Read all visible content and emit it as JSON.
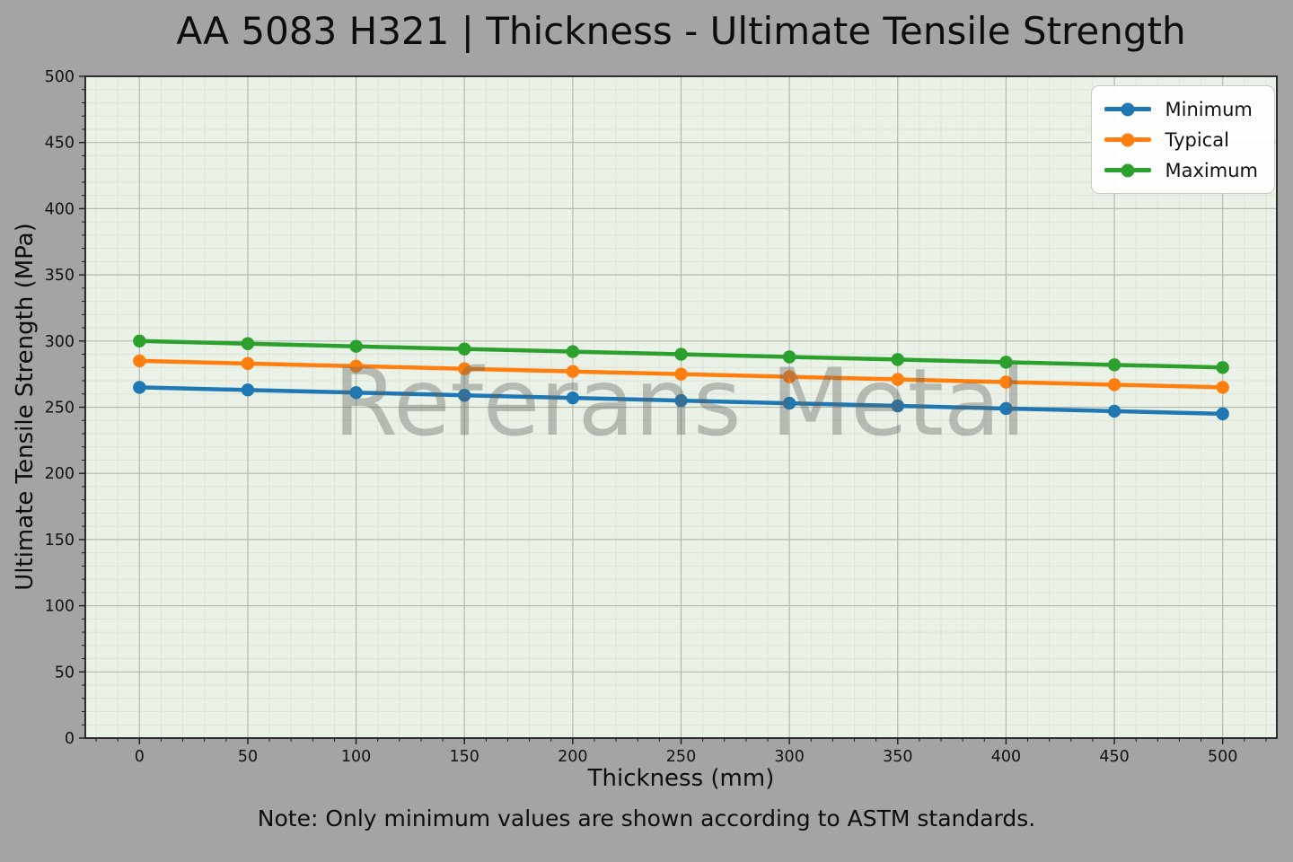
{
  "figure": {
    "background_color": "#a4a4a4",
    "watermark": "Referans Metal",
    "note": "Note: Only minimum values are shown according to ASTM standards."
  },
  "chart_data": {
    "type": "line",
    "title": "AA 5083 H321 | Thickness - Ultimate Tensile Strength",
    "xlabel": "Thickness (mm)",
    "ylabel": "Ultimate Tensile Strength (MPa)",
    "x": [
      0,
      50,
      100,
      150,
      200,
      250,
      300,
      350,
      400,
      450,
      500
    ],
    "series": [
      {
        "name": "Minimum",
        "color": "#1f77b4",
        "values": [
          265,
          263,
          261,
          259,
          257,
          255,
          253,
          251,
          249,
          247,
          245
        ]
      },
      {
        "name": "Typical",
        "color": "#ff7f0e",
        "values": [
          285,
          283,
          281,
          279,
          277,
          275,
          273,
          271,
          269,
          267,
          265
        ]
      },
      {
        "name": "Maximum",
        "color": "#2ca02c",
        "values": [
          300,
          298,
          296,
          294,
          292,
          290,
          288,
          286,
          284,
          282,
          280
        ]
      }
    ],
    "xlim": [
      -25,
      525
    ],
    "ylim": [
      0,
      500
    ],
    "x_ticks": [
      0,
      50,
      100,
      150,
      200,
      250,
      300,
      350,
      400,
      450,
      500
    ],
    "y_ticks": [
      0,
      50,
      100,
      150,
      200,
      250,
      300,
      350,
      400,
      450,
      500
    ],
    "grid": true,
    "legend_position": "upper right",
    "plot_background": "#eaf1e6",
    "marker": "circle"
  }
}
